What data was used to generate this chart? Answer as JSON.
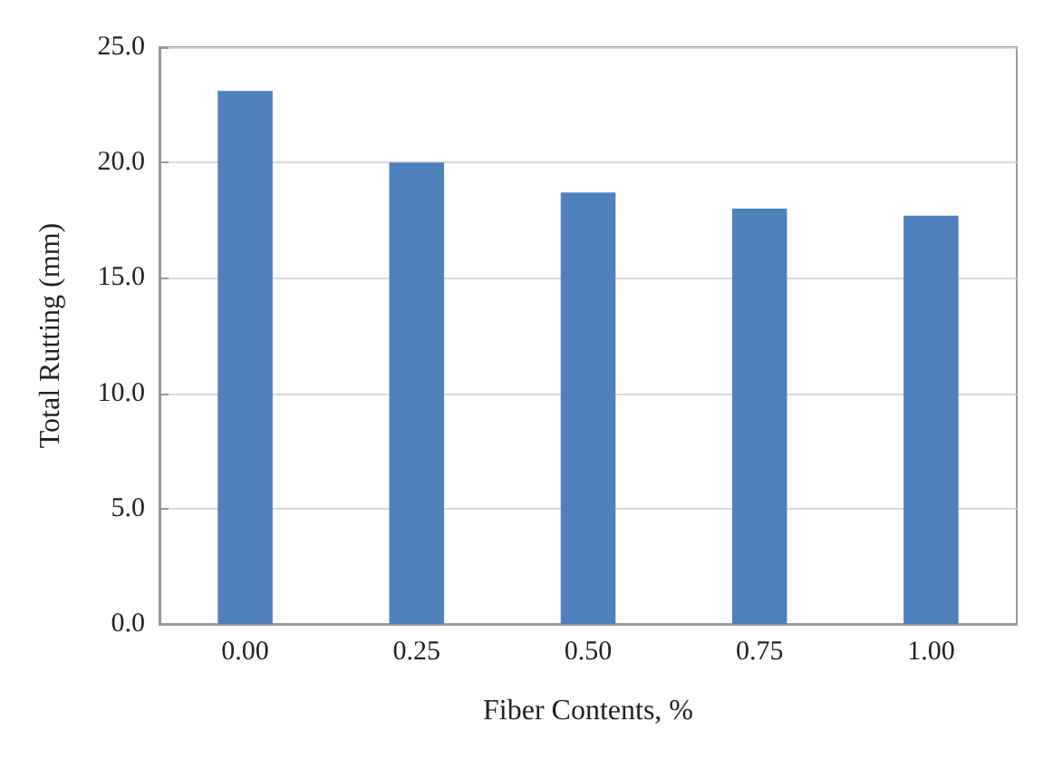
{
  "chart_data": {
    "type": "bar",
    "xlabel": "Fiber Contents, %",
    "ylabel": "Total Rutting (mm)",
    "categories": [
      "0.00",
      "0.25",
      "0.50",
      "0.75",
      "1.00"
    ],
    "values": [
      23.1,
      20.0,
      18.7,
      18.0,
      17.7
    ],
    "color": "#4f81bd",
    "ylim": [
      0,
      25
    ],
    "yticks": [
      {
        "value": 0,
        "label": "0.0"
      },
      {
        "value": 5,
        "label": "5.0"
      },
      {
        "value": 10,
        "label": "10.0"
      },
      {
        "value": 15,
        "label": "15.0"
      },
      {
        "value": 20,
        "label": "20.0"
      },
      {
        "value": 25,
        "label": "25.0"
      }
    ],
    "grid": "y"
  }
}
